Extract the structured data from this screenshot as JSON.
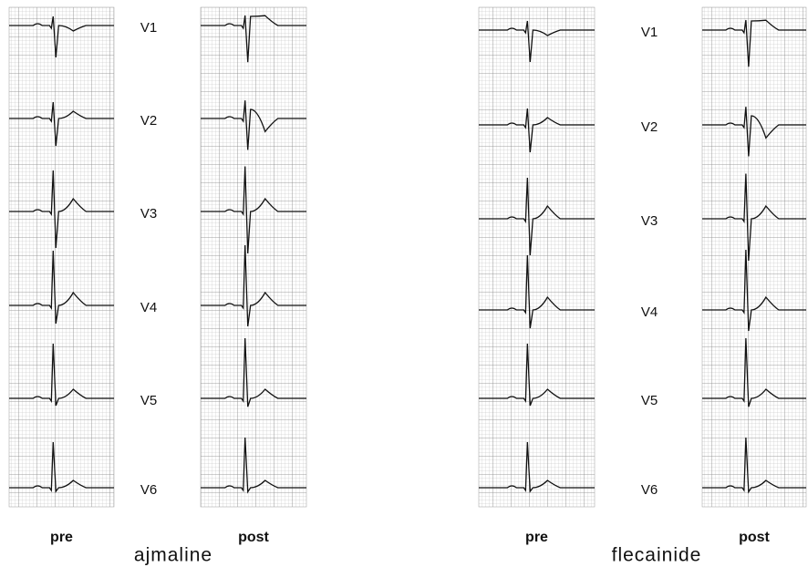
{
  "panels": [
    {
      "drug": "ajmaline",
      "columns": [
        "pre",
        "post"
      ],
      "leads": [
        "V1",
        "V2",
        "V3",
        "V4",
        "V5",
        "V6"
      ]
    },
    {
      "drug": "flecainide",
      "columns": [
        "pre",
        "post"
      ],
      "leads": [
        "V1",
        "V2",
        "V3",
        "V4",
        "V5",
        "V6"
      ]
    }
  ]
}
